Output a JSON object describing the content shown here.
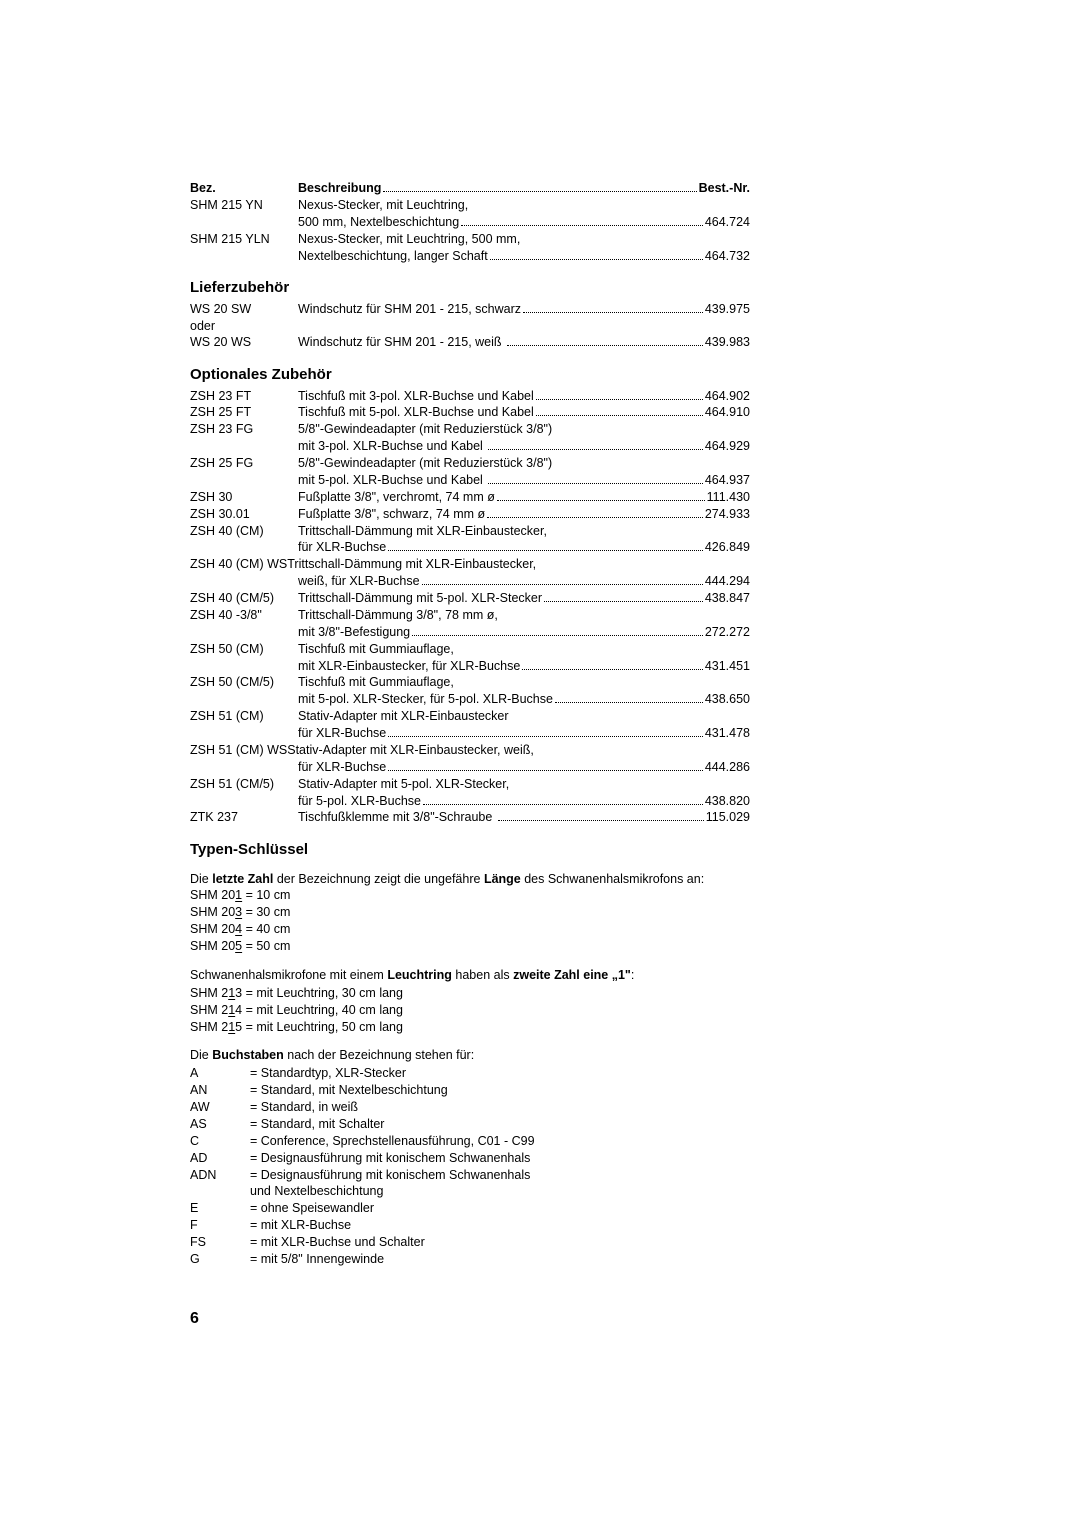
{
  "section1": {
    "header_left": "Bez.",
    "header_mid": "Beschreibung",
    "header_right": "Best.-Nr.",
    "rows": [
      {
        "bez": "SHM 215 YN",
        "lines": [
          "Nexus-Stecker, mit Leuchtring,"
        ],
        "last": "500 mm, Nextelbeschichtung",
        "nr": "464.724"
      },
      {
        "bez": "SHM 215 YLN",
        "lines": [
          "Nexus-Stecker, mit Leuchtring, 500 mm,"
        ],
        "last": "Nextelbeschichtung, langer Schaft",
        "nr": "464.732"
      }
    ]
  },
  "liefer": {
    "title": "Lieferzubehör",
    "rows": [
      {
        "bez": "WS 20 SW",
        "sub": "oder",
        "last": "Windschutz für SHM 201 - 215, schwarz",
        "nr": "439.975"
      },
      {
        "bez": "WS 20 WS",
        "last": "Windschutz für SHM 201 - 215, weiß ",
        "nr": "439.983"
      }
    ]
  },
  "optional": {
    "title": "Optionales Zubehör",
    "rows": [
      {
        "bez": "ZSH 23 FT",
        "last": "Tischfuß mit 3-pol. XLR-Buchse und Kabel",
        "nr": "464.902"
      },
      {
        "bez": "ZSH 25 FT",
        "last": "Tischfuß mit 5-pol. XLR-Buchse und Kabel",
        "nr": "464.910"
      },
      {
        "bez": "ZSH 23 FG",
        "lines": [
          "5/8\"-Gewindeadapter (mit Reduzierstück 3/8\")"
        ],
        "last": "mit 3-pol. XLR-Buchse und Kabel ",
        "nr": "464.929"
      },
      {
        "bez": "ZSH 25 FG",
        "lines": [
          "5/8\"-Gewindeadapter (mit Reduzierstück 3/8\")"
        ],
        "last": "mit 5-pol. XLR-Buchse und Kabel ",
        "nr": "464.937"
      },
      {
        "bez": "ZSH 30",
        "last": "Fußplatte 3/8\", verchromt, 74 mm ø",
        "nr": "111.430"
      },
      {
        "bez": "ZSH 30.01",
        "last": "Fußplatte 3/8\", schwarz, 74 mm ø",
        "nr": "274.933"
      },
      {
        "bez": "ZSH 40 (CM)",
        "lines": [
          "Trittschall-Dämmung mit XLR-Einbaustecker,"
        ],
        "last": "für XLR-Buchse",
        "nr": "426.849"
      },
      {
        "bez": "ZSH 40 (CM) WS",
        "bezwide": true,
        "lines": [
          "Trittschall-Dämmung mit XLR-Einbaustecker,"
        ],
        "last": "weiß, für XLR-Buchse",
        "nr": "444.294"
      },
      {
        "bez": "ZSH 40 (CM/5)",
        "last": "Trittschall-Dämmung mit 5-pol. XLR-Stecker",
        "nr": "438.847"
      },
      {
        "bez": "ZSH 40 -3/8\"",
        "lines": [
          "Trittschall-Dämmung 3/8\", 78 mm ø,"
        ],
        "last": "mit 3/8\"-Befestigung",
        "nr": "272.272"
      },
      {
        "bez": "ZSH 50 (CM)",
        "lines": [
          "Tischfuß mit Gummiauflage,"
        ],
        "last": "mit XLR-Einbaustecker, für XLR-Buchse",
        "nr": "431.451"
      },
      {
        "bez": "ZSH 50 (CM/5)",
        "lines": [
          "Tischfuß mit Gummiauflage,"
        ],
        "last": "mit 5-pol. XLR-Stecker, für 5-pol. XLR-Buchse",
        "nr": "438.650"
      },
      {
        "bez": "ZSH 51 (CM)",
        "lines": [
          "Stativ-Adapter mit XLR-Einbaustecker"
        ],
        "last": "für XLR-Buchse",
        "nr": "431.478"
      },
      {
        "bez": "ZSH 51 (CM) WS",
        "bezwide": true,
        "lines": [
          "Stativ-Adapter mit XLR-Einbaustecker, weiß,"
        ],
        "last": "für XLR-Buchse",
        "nr": "444.286"
      },
      {
        "bez": "ZSH 51 (CM/5)",
        "lines": [
          "Stativ-Adapter mit 5-pol. XLR-Stecker,"
        ],
        "last": "für 5-pol. XLR-Buchse",
        "nr": "438.820"
      },
      {
        "bez": "ZTK 237",
        "last": "Tischfußklemme mit 3/8\"-Schraube ",
        "nr": "115.029"
      }
    ]
  },
  "typen": {
    "title": "Typen-Schlüssel",
    "p1a": "Die ",
    "p1b": "letzte Zahl",
    "p1c": " der Bezeichnung zeigt die ungefähre ",
    "p1d": "Länge",
    "p1e": " des Schwanenhalsmikrofons an:",
    "l1": [
      "SHM 20",
      "1",
      " = 10 cm"
    ],
    "l2": [
      "SHM 20",
      "3",
      " = 30 cm"
    ],
    "l3": [
      "SHM 20",
      "4",
      " = 40 cm"
    ],
    "l4": [
      "SHM 20",
      "5",
      " = 50 cm"
    ],
    "p2a": "Schwanenhalsmikrofone mit einem ",
    "p2b": "Leuchtring",
    "p2c": " haben als ",
    "p2d": "zweite Zahl eine „1\"",
    "p2e": ":",
    "m1": [
      "SHM 2",
      "1",
      "3 = mit Leuchtring, 30 cm lang"
    ],
    "m2": [
      "SHM 2",
      "1",
      "4 = mit Leuchtring, 40 cm lang"
    ],
    "m3": [
      "SHM 2",
      "1",
      "5 = mit Leuchtring, 50 cm lang"
    ],
    "p3a": "Die ",
    "p3b": "Buchstaben",
    "p3c": " nach der Bezeichnung stehen für:",
    "legend": [
      [
        "A",
        "= Standardtyp, XLR-Stecker"
      ],
      [
        "AN",
        "= Standard, mit Nextelbeschichtung"
      ],
      [
        "AW",
        "= Standard, in weiß"
      ],
      [
        "AS",
        "= Standard, mit Schalter"
      ],
      [
        "C",
        "= Conference, Sprechstellenausführung, C01 - C99"
      ],
      [
        "AD",
        "= Designausführung mit konischem Schwanenhals"
      ],
      [
        "ADN",
        "= Designausführung mit konischem Schwanenhals"
      ],
      [
        "",
        "   und Nextelbeschichtung"
      ],
      [
        "E",
        "= ohne Speisewandler"
      ],
      [
        "F",
        "= mit XLR-Buchse"
      ],
      [
        "FS",
        "= mit XLR-Buchse und Schalter"
      ],
      [
        "G",
        "= mit 5/8\" Innengewinde"
      ]
    ]
  },
  "pagenum": "6"
}
